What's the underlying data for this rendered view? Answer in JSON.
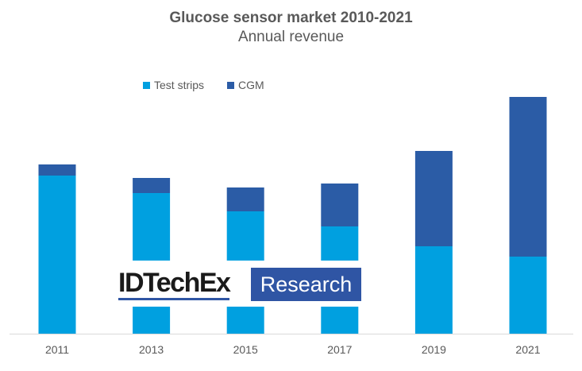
{
  "chart_data": {
    "type": "bar",
    "stacked": true,
    "title": "Glucose sensor market 2010-2021",
    "subtitle": "Annual revenue",
    "categories": [
      "2011",
      "2013",
      "2015",
      "2017",
      "2019",
      "2021"
    ],
    "series": [
      {
        "name": "Test strips",
        "color": "#00a0e0",
        "values": [
          199,
          177,
          154,
          135,
          110,
          97
        ]
      },
      {
        "name": "CGM",
        "color": "#2b5ca6",
        "values": [
          14,
          19,
          30,
          54,
          120,
          201
        ]
      }
    ],
    "y_axis_shown": false,
    "grid": false,
    "legend_position": "top-left",
    "xlabel": "",
    "ylabel": ""
  },
  "watermark": {
    "left": "IDTechEx",
    "right": "Research"
  }
}
